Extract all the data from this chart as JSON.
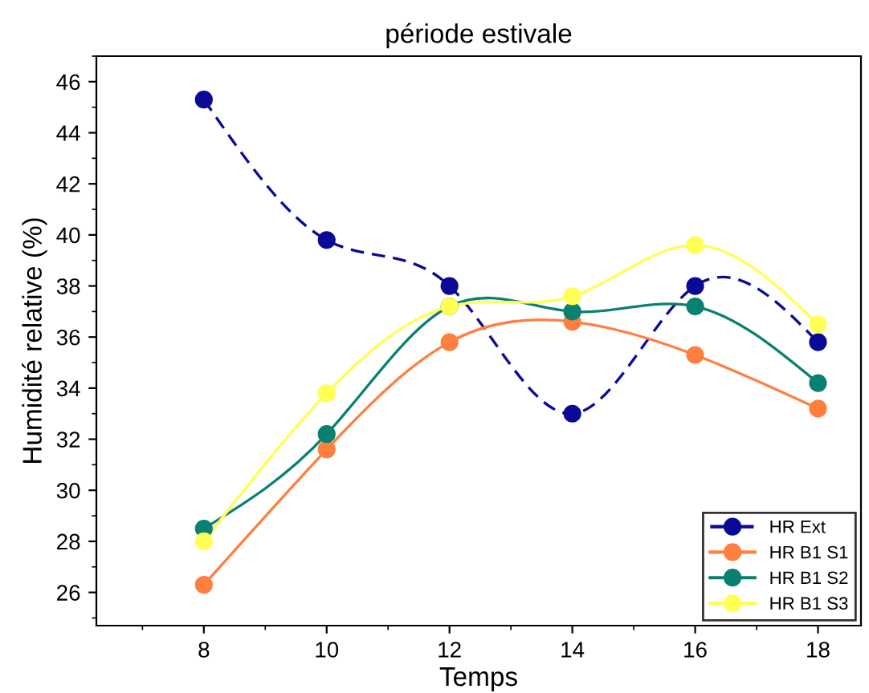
{
  "chart_data": {
    "type": "line",
    "title": "période estivale",
    "xlabel": "Temps",
    "ylabel": "Humidité relative (%)",
    "x": [
      8,
      10,
      12,
      14,
      16,
      18
    ],
    "series": [
      {
        "name": "HR Ext",
        "color": "#0a0a96",
        "line_style": "dashed",
        "values": [
          45.3,
          39.8,
          38.0,
          33.0,
          38.0,
          35.8
        ]
      },
      {
        "name": "HR B1 S1",
        "color": "#ff7f3f",
        "values": [
          26.3,
          31.6,
          35.8,
          36.6,
          35.3,
          33.2
        ]
      },
      {
        "name": "HR B1 S2",
        "color": "#0a8070",
        "values": [
          28.5,
          32.2,
          37.2,
          37.0,
          37.2,
          34.2
        ]
      },
      {
        "name": "HR B1 S3",
        "color": "#ffff55",
        "values": [
          28.0,
          33.8,
          37.2,
          37.6,
          39.6,
          36.5
        ]
      }
    ],
    "xlim": [
      6.25,
      18.7
    ],
    "ylim": [
      24.7,
      47
    ],
    "xticks": [
      8,
      10,
      12,
      14,
      16,
      18
    ],
    "yticks": [
      26,
      28,
      30,
      32,
      34,
      36,
      38,
      40,
      42,
      44,
      46
    ],
    "marker": "circle",
    "line_style": "solid",
    "legend": "bottom right",
    "grid": false
  }
}
